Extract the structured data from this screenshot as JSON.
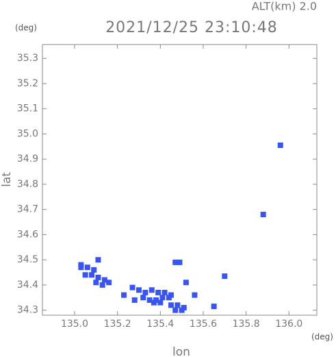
{
  "chart_data": {
    "type": "scatter",
    "title": "2021/12/25 23:10:48",
    "subtitle": "ALT(km) 2.0",
    "y_unit": "(deg)",
    "x_unit": "(deg)",
    "xlabel": "lon",
    "ylabel": "lat",
    "xlim": [
      134.85,
      136.13
    ],
    "ylim": [
      34.28,
      35.355
    ],
    "xticks": [
      {
        "value": 135.0,
        "label": "135.0"
      },
      {
        "value": 135.2,
        "label": "135.2"
      },
      {
        "value": 135.4,
        "label": "135.4"
      },
      {
        "value": 135.6,
        "label": "135.6"
      },
      {
        "value": 135.8,
        "label": "135.8"
      },
      {
        "value": 136.0,
        "label": "136.0"
      }
    ],
    "yticks": [
      34.3,
      34.4,
      34.5,
      34.6,
      34.7,
      34.8,
      34.9,
      {
        "value": 35.0,
        "label": "35.0"
      },
      35.1,
      35.2,
      35.3
    ],
    "color": "#3a55ee",
    "x": [
      135.03,
      135.06,
      135.09,
      135.05,
      135.08,
      135.11,
      135.14,
      135.1,
      135.13,
      135.16,
      135.11,
      135.03,
      135.27,
      135.3,
      135.33,
      135.36,
      135.39,
      135.42,
      135.45,
      135.32,
      135.35,
      135.38,
      135.41,
      135.44,
      135.37,
      135.4,
      135.47,
      135.5,
      135.56,
      135.28,
      135.45,
      135.48,
      135.51,
      135.52,
      135.47,
      135.49,
      135.7,
      135.65,
      135.88,
      135.96,
      135.23
    ],
    "y": [
      34.47,
      34.47,
      34.46,
      34.44,
      34.44,
      34.43,
      34.42,
      34.41,
      34.4,
      34.41,
      34.5,
      34.48,
      34.39,
      34.38,
      34.37,
      34.38,
      34.37,
      34.37,
      34.36,
      34.35,
      34.34,
      34.34,
      34.35,
      34.35,
      34.33,
      34.33,
      34.3,
      34.3,
      34.36,
      34.34,
      34.32,
      34.32,
      34.31,
      34.41,
      34.49,
      34.49,
      34.435,
      34.315,
      34.68,
      34.955,
      34.36
    ]
  }
}
